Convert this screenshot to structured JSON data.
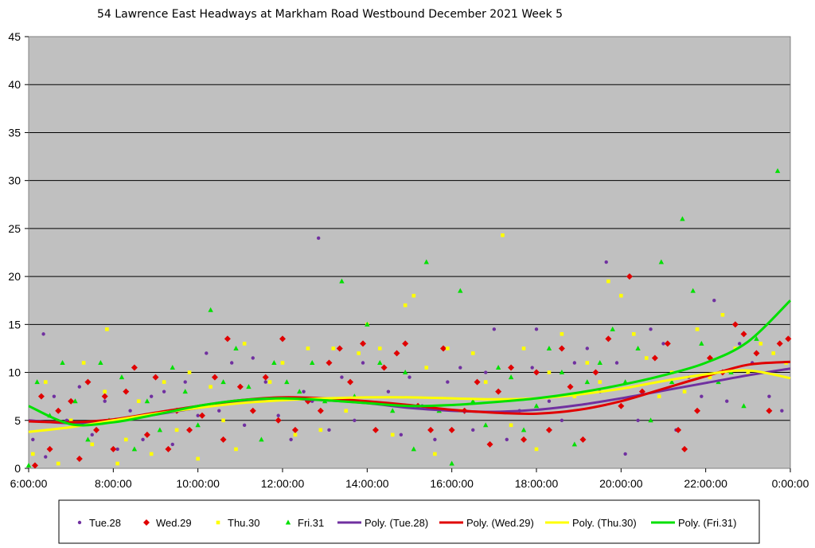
{
  "chart_data": {
    "type": "scatter",
    "title": "54 Lawrence East Headways at Markham Road Westbound December 2021  Week 5",
    "xlabel": "",
    "ylabel": "",
    "x_unit": "hours",
    "xlim": [
      6,
      24
    ],
    "ylim": [
      0,
      45
    ],
    "x_ticks": [
      {
        "value": 6,
        "label": "6:00:00"
      },
      {
        "value": 8,
        "label": "8:00:00"
      },
      {
        "value": 10,
        "label": "10:00:00"
      },
      {
        "value": 12,
        "label": "12:00:00"
      },
      {
        "value": 14,
        "label": "14:00:00"
      },
      {
        "value": 16,
        "label": "16:00:00"
      },
      {
        "value": 18,
        "label": "18:00:00"
      },
      {
        "value": 20,
        "label": "20:00:00"
      },
      {
        "value": 22,
        "label": "22:00:00"
      },
      {
        "value": 24,
        "label": "0:00:00"
      }
    ],
    "y_ticks": [
      0,
      5,
      10,
      15,
      20,
      25,
      30,
      35,
      40,
      45
    ],
    "grid": true,
    "plot_background": "#c0c0c0",
    "legend_position": "bottom",
    "series": [
      {
        "name": "Tue.28",
        "marker": "circle",
        "color": "#7030a0",
        "points": [
          [
            6.1,
            3
          ],
          [
            6.4,
            1.2
          ],
          [
            6.35,
            14
          ],
          [
            6.6,
            7.5
          ],
          [
            6.9,
            5
          ],
          [
            7.2,
            8.5
          ],
          [
            7.5,
            3.5
          ],
          [
            7.8,
            7
          ],
          [
            8.1,
            2
          ],
          [
            8.4,
            6
          ],
          [
            8.7,
            3
          ],
          [
            8.9,
            7.5
          ],
          [
            9.2,
            8
          ],
          [
            9.4,
            2.5
          ],
          [
            9.7,
            9
          ],
          [
            10.0,
            5.5
          ],
          [
            10.2,
            12
          ],
          [
            10.5,
            6
          ],
          [
            10.8,
            11
          ],
          [
            11.1,
            4.5
          ],
          [
            11.3,
            11.5
          ],
          [
            11.6,
            9
          ],
          [
            11.9,
            5.5
          ],
          [
            12.2,
            3
          ],
          [
            12.5,
            8
          ],
          [
            12.7,
            7
          ],
          [
            12.85,
            24
          ],
          [
            13.1,
            4
          ],
          [
            13.4,
            9.5
          ],
          [
            13.7,
            5
          ],
          [
            13.9,
            11
          ],
          [
            14.2,
            4
          ],
          [
            14.5,
            8
          ],
          [
            14.8,
            3.5
          ],
          [
            15.0,
            9.5
          ],
          [
            15.3,
            6.5
          ],
          [
            15.6,
            3
          ],
          [
            15.9,
            9
          ],
          [
            16.2,
            10.5
          ],
          [
            16.5,
            4
          ],
          [
            16.8,
            10
          ],
          [
            17.0,
            14.5
          ],
          [
            17.3,
            3
          ],
          [
            17.6,
            6
          ],
          [
            17.9,
            10.5
          ],
          [
            18.0,
            14.5
          ],
          [
            18.3,
            7
          ],
          [
            18.6,
            5
          ],
          [
            18.9,
            11
          ],
          [
            19.2,
            12.5
          ],
          [
            19.5,
            8
          ],
          [
            19.65,
            21.5
          ],
          [
            19.9,
            11
          ],
          [
            20.1,
            1.5
          ],
          [
            20.4,
            5
          ],
          [
            20.7,
            14.5
          ],
          [
            21.0,
            13
          ],
          [
            21.3,
            4
          ],
          [
            21.6,
            9.5
          ],
          [
            21.9,
            7.5
          ],
          [
            22.2,
            17.5
          ],
          [
            22.5,
            7
          ],
          [
            22.8,
            13
          ],
          [
            23.1,
            11
          ],
          [
            23.5,
            7.5
          ],
          [
            23.8,
            6
          ],
          [
            23.95,
            13.5
          ]
        ]
      },
      {
        "name": "Wed.29",
        "marker": "diamond",
        "color": "#e00000",
        "points": [
          [
            6.15,
            0.3
          ],
          [
            6.3,
            7.5
          ],
          [
            6.5,
            2
          ],
          [
            6.7,
            6
          ],
          [
            7.0,
            7
          ],
          [
            7.2,
            1
          ],
          [
            7.4,
            9
          ],
          [
            7.6,
            4
          ],
          [
            7.8,
            7.5
          ],
          [
            8.0,
            2
          ],
          [
            8.3,
            8
          ],
          [
            8.5,
            10.5
          ],
          [
            8.8,
            3.5
          ],
          [
            9.0,
            9.5
          ],
          [
            9.3,
            2
          ],
          [
            9.5,
            6
          ],
          [
            9.8,
            4
          ],
          [
            10.1,
            5.5
          ],
          [
            10.4,
            9.5
          ],
          [
            10.6,
            3
          ],
          [
            10.7,
            13.5
          ],
          [
            11.0,
            8.5
          ],
          [
            11.3,
            6
          ],
          [
            11.6,
            9.5
          ],
          [
            11.9,
            5
          ],
          [
            12.0,
            13.5
          ],
          [
            12.3,
            4
          ],
          [
            12.6,
            7
          ],
          [
            12.9,
            6
          ],
          [
            13.1,
            11
          ],
          [
            13.35,
            12.5
          ],
          [
            13.6,
            9
          ],
          [
            13.9,
            13
          ],
          [
            14.2,
            4
          ],
          [
            14.4,
            10.5
          ],
          [
            14.7,
            12
          ],
          [
            14.9,
            13
          ],
          [
            15.2,
            6.5
          ],
          [
            15.5,
            4
          ],
          [
            15.8,
            12.5
          ],
          [
            16.0,
            4
          ],
          [
            16.3,
            6
          ],
          [
            16.6,
            9
          ],
          [
            16.9,
            2.5
          ],
          [
            17.1,
            8
          ],
          [
            17.4,
            10.5
          ],
          [
            17.7,
            3
          ],
          [
            18.0,
            10
          ],
          [
            18.3,
            4
          ],
          [
            18.6,
            12.5
          ],
          [
            18.8,
            8.5
          ],
          [
            19.1,
            3
          ],
          [
            19.4,
            10
          ],
          [
            19.7,
            13.5
          ],
          [
            20.0,
            6.5
          ],
          [
            20.2,
            20
          ],
          [
            20.5,
            8
          ],
          [
            20.8,
            11.5
          ],
          [
            21.1,
            13
          ],
          [
            21.35,
            4
          ],
          [
            21.5,
            2
          ],
          [
            21.8,
            6
          ],
          [
            22.1,
            11.5
          ],
          [
            22.4,
            10
          ],
          [
            22.7,
            15
          ],
          [
            22.9,
            14
          ],
          [
            23.2,
            12
          ],
          [
            23.5,
            6
          ],
          [
            23.75,
            13
          ],
          [
            23.95,
            13.5
          ]
        ]
      },
      {
        "name": "Thu.30",
        "marker": "square",
        "color": "#ffff00",
        "points": [
          [
            6.1,
            1.5
          ],
          [
            6.4,
            9
          ],
          [
            6.7,
            0.5
          ],
          [
            7.0,
            5
          ],
          [
            7.3,
            11
          ],
          [
            7.5,
            2.5
          ],
          [
            7.8,
            8
          ],
          [
            7.85,
            14.5
          ],
          [
            8.1,
            0.5
          ],
          [
            8.3,
            3
          ],
          [
            8.6,
            7
          ],
          [
            8.9,
            1.5
          ],
          [
            9.2,
            9
          ],
          [
            9.5,
            4
          ],
          [
            9.8,
            10
          ],
          [
            10.0,
            1
          ],
          [
            10.3,
            8.5
          ],
          [
            10.6,
            5
          ],
          [
            10.9,
            2
          ],
          [
            11.1,
            13
          ],
          [
            11.4,
            7
          ],
          [
            11.7,
            9
          ],
          [
            12.0,
            11
          ],
          [
            12.3,
            3.5
          ],
          [
            12.6,
            12.5
          ],
          [
            12.9,
            4
          ],
          [
            13.2,
            12.5
          ],
          [
            13.5,
            6
          ],
          [
            13.8,
            12
          ],
          [
            14.0,
            15
          ],
          [
            14.3,
            12.5
          ],
          [
            14.6,
            3.5
          ],
          [
            14.9,
            17
          ],
          [
            15.1,
            18
          ],
          [
            15.4,
            10.5
          ],
          [
            15.6,
            1.5
          ],
          [
            15.9,
            12.5
          ],
          [
            16.2,
            6
          ],
          [
            16.5,
            12
          ],
          [
            16.8,
            9
          ],
          [
            17.2,
            24.3
          ],
          [
            17.4,
            4.5
          ],
          [
            17.7,
            12.5
          ],
          [
            18.0,
            2
          ],
          [
            18.3,
            10
          ],
          [
            18.6,
            14
          ],
          [
            18.9,
            7.5
          ],
          [
            19.2,
            11
          ],
          [
            19.5,
            9
          ],
          [
            19.7,
            19.5
          ],
          [
            20.0,
            18
          ],
          [
            20.3,
            14
          ],
          [
            20.6,
            11.5
          ],
          [
            20.9,
            7.5
          ],
          [
            21.2,
            10
          ],
          [
            21.5,
            8
          ],
          [
            21.8,
            14.5
          ],
          [
            22.1,
            9.5
          ],
          [
            22.4,
            16
          ],
          [
            22.7,
            12.5
          ],
          [
            23.0,
            10
          ],
          [
            23.3,
            13
          ],
          [
            23.6,
            12
          ],
          [
            23.9,
            11
          ]
        ]
      },
      {
        "name": "Fri.31",
        "marker": "triangle",
        "color": "#00e000",
        "points": [
          [
            6.0,
            0.3
          ],
          [
            6.2,
            9
          ],
          [
            6.5,
            5.5
          ],
          [
            6.8,
            11
          ],
          [
            7.1,
            7
          ],
          [
            7.4,
            3
          ],
          [
            7.7,
            11
          ],
          [
            7.9,
            5
          ],
          [
            8.2,
            9.5
          ],
          [
            8.5,
            2
          ],
          [
            8.8,
            7
          ],
          [
            9.1,
            4
          ],
          [
            9.4,
            10.5
          ],
          [
            9.7,
            8
          ],
          [
            10.0,
            4.5
          ],
          [
            10.3,
            16.5
          ],
          [
            10.6,
            9
          ],
          [
            10.9,
            12.5
          ],
          [
            11.2,
            8.5
          ],
          [
            11.5,
            3
          ],
          [
            11.8,
            11
          ],
          [
            12.1,
            9
          ],
          [
            12.4,
            8
          ],
          [
            12.7,
            11
          ],
          [
            13.0,
            7
          ],
          [
            13.4,
            19.5
          ],
          [
            13.7,
            7.5
          ],
          [
            14.0,
            15
          ],
          [
            14.3,
            11
          ],
          [
            14.6,
            6
          ],
          [
            14.9,
            10
          ],
          [
            15.1,
            2
          ],
          [
            15.4,
            21.5
          ],
          [
            15.7,
            6
          ],
          [
            16.0,
            0.5
          ],
          [
            16.2,
            18.5
          ],
          [
            16.5,
            7
          ],
          [
            16.8,
            4.5
          ],
          [
            17.1,
            10.5
          ],
          [
            17.4,
            9.5
          ],
          [
            17.7,
            4
          ],
          [
            18.0,
            6.5
          ],
          [
            18.3,
            12.5
          ],
          [
            18.6,
            10
          ],
          [
            18.9,
            2.5
          ],
          [
            19.2,
            9
          ],
          [
            19.5,
            11
          ],
          [
            19.8,
            14.5
          ],
          [
            20.1,
            9
          ],
          [
            20.4,
            12.5
          ],
          [
            20.7,
            5
          ],
          [
            20.95,
            21.5
          ],
          [
            21.2,
            9
          ],
          [
            21.45,
            26
          ],
          [
            21.7,
            18.5
          ],
          [
            21.9,
            13
          ],
          [
            22.3,
            9
          ],
          [
            22.6,
            10
          ],
          [
            22.9,
            6.5
          ],
          [
            23.2,
            13.5
          ],
          [
            23.7,
            31
          ]
        ]
      }
    ],
    "trendlines": [
      {
        "name": "Poly. (Tue.28)",
        "color": "#7030a0",
        "x": [
          6,
          7,
          8,
          9,
          10,
          11,
          12,
          13,
          14,
          15,
          16,
          17,
          18,
          19,
          20,
          21,
          22,
          23,
          24
        ],
        "y": [
          5.0,
          4.7,
          4.9,
          5.6,
          6.3,
          6.9,
          7.2,
          7.1,
          6.8,
          6.3,
          6.0,
          5.9,
          6.1,
          6.6,
          7.3,
          8.1,
          8.9,
          9.7,
          10.4
        ]
      },
      {
        "name": "Poly. (Wed.29)",
        "color": "#e00000",
        "x": [
          6,
          7,
          8,
          9,
          10,
          11,
          12,
          13,
          14,
          15,
          16,
          17,
          18,
          19,
          20,
          21,
          22,
          23,
          24
        ],
        "y": [
          4.9,
          4.8,
          5.1,
          5.8,
          6.5,
          7.1,
          7.4,
          7.3,
          7.0,
          6.6,
          6.1,
          5.8,
          5.7,
          6.1,
          7.0,
          8.3,
          9.6,
          10.8,
          11.1
        ]
      },
      {
        "name": "Poly. (Thu.30)",
        "color": "#ffff00",
        "x": [
          6,
          7,
          8,
          9,
          10,
          11,
          12,
          13,
          14,
          15,
          16,
          17,
          18,
          19,
          20,
          21,
          22,
          23,
          24
        ],
        "y": [
          3.8,
          4.3,
          5.0,
          5.7,
          6.3,
          6.8,
          7.1,
          7.3,
          7.4,
          7.4,
          7.3,
          7.2,
          7.3,
          7.7,
          8.3,
          9.1,
          9.8,
          10.2,
          9.4
        ]
      },
      {
        "name": "Poly. (Fri.31)",
        "color": "#00e000",
        "x": [
          6,
          7,
          8,
          9,
          10,
          11,
          12,
          13,
          14,
          15,
          16,
          17,
          18,
          19,
          20,
          21,
          22,
          23,
          24
        ],
        "y": [
          6.5,
          4.6,
          4.8,
          5.6,
          6.5,
          7.1,
          7.3,
          7.1,
          6.8,
          6.5,
          6.6,
          6.9,
          7.3,
          7.9,
          8.7,
          9.7,
          11.0,
          13.2,
          17.5
        ]
      }
    ]
  }
}
